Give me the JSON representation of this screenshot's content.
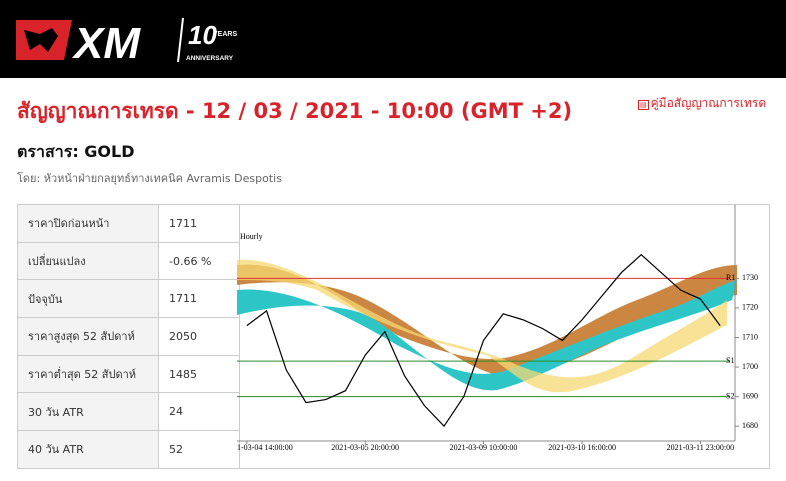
{
  "header": {
    "logo": "XM",
    "anniversary_number": "10",
    "anniversary_years": "YEARS",
    "anniversary_text": "ANNIVERSARY"
  },
  "title": "สัญญาณการเทรด - 12 / 03 / 2021 - 10:00 (GMT +2)",
  "guide_link": "คู่มือสัญญาณการเทรด",
  "instrument": "ตราสาร: GOLD",
  "author": "โดย: หัวหน้าฝ่ายกลยุทธ์ทางเทคนิค Avramis Despotis",
  "table": {
    "rows": [
      [
        "ราคาปิดก่อนหน้า",
        "1711"
      ],
      [
        "เปลี่ยนแปลง",
        "-0.66 %"
      ],
      [
        "ปัจจุบัน",
        "1711"
      ],
      [
        "ราคาสูงสุด 52 สัปดาห์",
        "2050"
      ],
      [
        "ราคาต่ำสุด 52 สัปดาห์",
        "1485"
      ],
      [
        "30 วัน ATR",
        "24"
      ],
      [
        "40 วัน ATR",
        "52"
      ]
    ]
  },
  "chart_data": {
    "type": "line",
    "subtitle": "Hourly",
    "color": "#000000",
    "categories": [
      "1-03-04 14:00:00",
      null,
      null,
      null,
      null,
      null,
      "2021-03-05 20:00:00",
      null,
      null,
      null,
      null,
      null,
      "2021-03-09 10:00:00",
      null,
      null,
      null,
      null,
      "2021-03-10 16:00:00",
      null,
      null,
      null,
      null,
      null,
      "2021-03-11 23:00:00",
      null
    ],
    "values": [
      1714,
      1719,
      1699,
      1688,
      1689,
      1692,
      1704,
      1712,
      1697,
      1687,
      1680,
      1690,
      1709,
      1718,
      1716,
      1713,
      1709,
      1716,
      1724,
      1732,
      1738,
      1732,
      1726,
      1723,
      1714
    ],
    "levels": [
      {
        "label": "R1",
        "value": 1730,
        "color": "#e03030"
      },
      {
        "label": "S1",
        "value": 1702,
        "color": "#2a8a2a"
      },
      {
        "label": "S2",
        "value": 1690,
        "color": "#2a8a2a"
      }
    ],
    "ylim": [
      1675,
      1754.8
    ],
    "yticks": [
      1680,
      1690,
      1700,
      1710,
      1720,
      1730
    ]
  }
}
